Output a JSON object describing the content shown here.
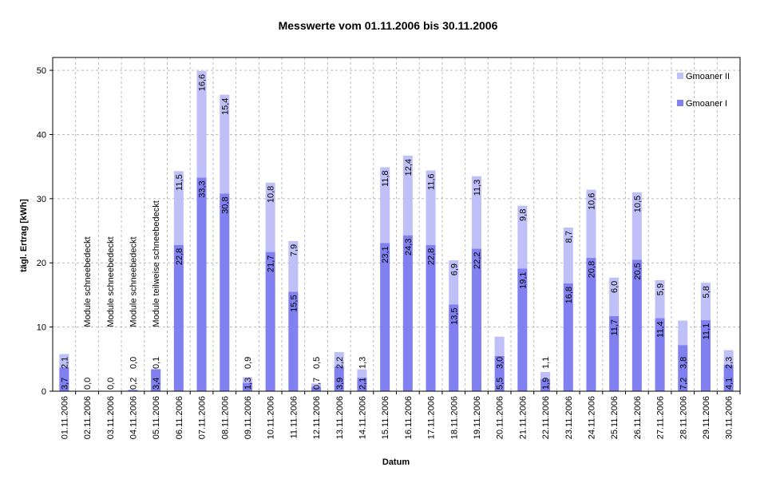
{
  "chart_data": {
    "type": "bar",
    "stacked": true,
    "title": "Messwerte vom 01.11.2006 bis 30.11.2006",
    "xlabel": "Datum",
    "ylabel": "tägl. Ertrag [kWh]",
    "ylim": [
      0,
      52
    ],
    "yticks": [
      "0",
      "10",
      "20",
      "30",
      "40",
      "50"
    ],
    "ytick_values": [
      0,
      10,
      20,
      30,
      40,
      50
    ],
    "grid": true,
    "legend_placement": "top-right",
    "categories": [
      "01.11.2006",
      "02.11.2006",
      "03.11.2006",
      "04.11.2006",
      "05.11.2006",
      "06.11.2006",
      "07.11.2006",
      "08.11.2006",
      "09.11.2006",
      "10.11.2006",
      "11.11.2006",
      "12.11.2006",
      "13.11.2006",
      "14.11.2006",
      "15.11.2006",
      "16.11.2006",
      "17.11.2006",
      "18.11.2006",
      "19.11.2006",
      "20.11.2006",
      "21.11.2006",
      "22.11.2006",
      "23.11.2006",
      "24.11.2006",
      "25.11.2006",
      "26.11.2006",
      "27.11.2006",
      "28.11.2006",
      "29.11.2006",
      "30.11.2006"
    ],
    "series": [
      {
        "name": "Gmoaner I",
        "color": "#8080f0",
        "values": [
          3.7,
          0.0,
          0.0,
          0.2,
          3.4,
          22.8,
          33.3,
          30.8,
          1.3,
          21.7,
          15.5,
          0.7,
          3.9,
          2.1,
          23.1,
          24.3,
          22.8,
          13.5,
          22.2,
          5.5,
          19.1,
          1.9,
          16.8,
          20.8,
          11.7,
          20.5,
          11.4,
          7.2,
          11.1,
          4.1
        ],
        "labels": [
          "3,7",
          "0,0",
          "0,0",
          "0,2",
          "3,4",
          "22,8",
          "33,3",
          "30,8",
          "1,3",
          "21,7",
          "15,5",
          "0,7",
          "3,9",
          "2,1",
          "23,1",
          "24,3",
          "22,8",
          "13,5",
          "22,2",
          "5,5",
          "19,1",
          "1,9",
          "16,8",
          "20,8",
          "11,7",
          "20,5",
          "11,4",
          "7,2",
          "11,1",
          "4,1"
        ]
      },
      {
        "name": "Gmoaner II",
        "color": "#c0c0f8",
        "values": [
          2.1,
          0.0,
          0.0,
          0.0,
          0.1,
          11.5,
          16.6,
          15.4,
          0.9,
          10.8,
          7.9,
          0.5,
          2.2,
          1.3,
          11.8,
          12.4,
          11.6,
          6.9,
          11.3,
          3.0,
          9.8,
          1.1,
          8.7,
          10.6,
          6.0,
          10.5,
          5.9,
          3.8,
          5.8,
          2.3
        ],
        "labels": [
          "2,1",
          "",
          "",
          "0,0",
          "0,1",
          "11,5",
          "16,6",
          "15,4",
          "0,9",
          "10,8",
          "7,9",
          "0,5",
          "2,2",
          "1,3",
          "11,8",
          "12,4",
          "11,6",
          "6,9",
          "11,3",
          "3,0",
          "9,8",
          "1,1",
          "8,7",
          "10,6",
          "6,0",
          "10,5",
          "5,9",
          "3,8",
          "5,8",
          "2,3"
        ]
      }
    ],
    "annotations": [
      {
        "category_index": 1,
        "text": "Module schneebedeckt"
      },
      {
        "category_index": 2,
        "text": "Module schneebedeckt"
      },
      {
        "category_index": 3,
        "text": "Module schneebedeckt"
      },
      {
        "category_index": 4,
        "text": "Module teilweise schneebedeckt"
      }
    ],
    "legend": [
      {
        "label": "Gmoaner II",
        "color": "#c0c0f8"
      },
      {
        "label": "Gmoaner I",
        "color": "#8080f0"
      }
    ]
  }
}
